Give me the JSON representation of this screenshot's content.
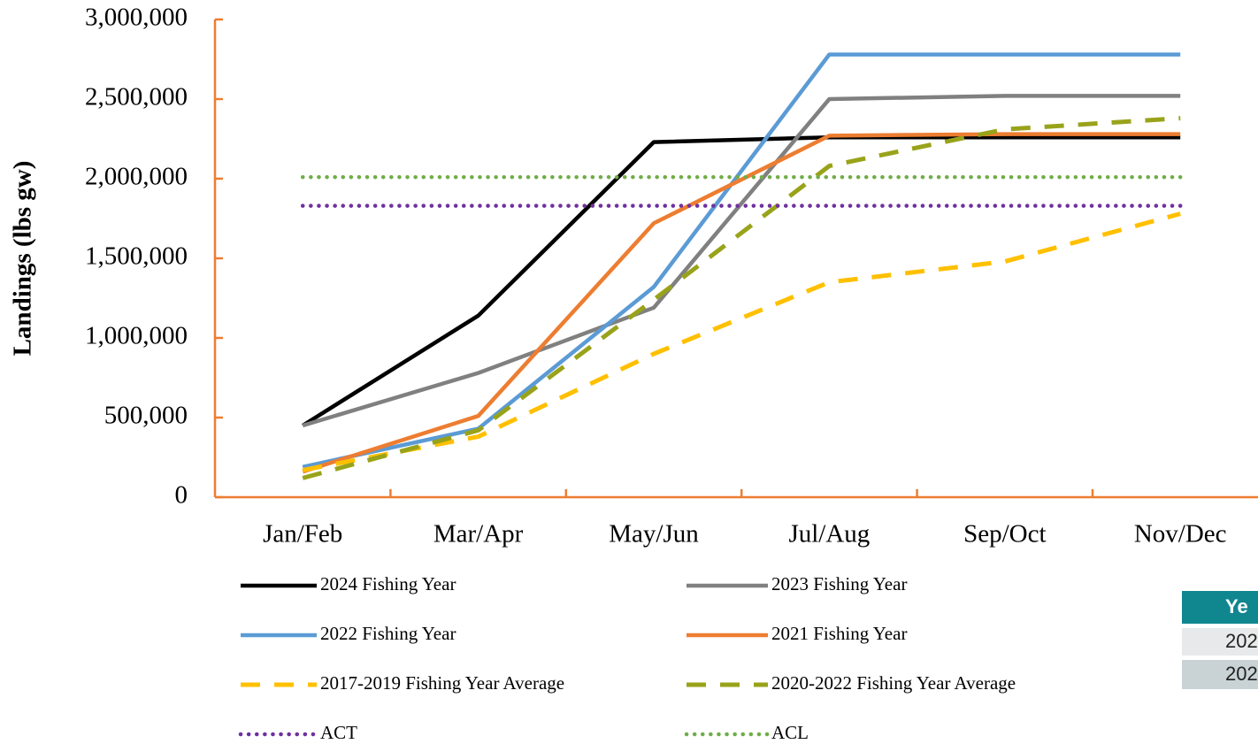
{
  "chart_data": {
    "type": "line",
    "y_label": "Landings (lbs gw)",
    "categories": [
      "Jan/Feb",
      "Mar/Apr",
      "May/Jun",
      "Jul/Aug",
      "Sep/Oct",
      "Nov/Dec"
    ],
    "ylim": [
      0,
      3000000
    ],
    "yticks": [
      0,
      {
        "value": 500000,
        "label": "500,000"
      },
      {
        "value": 1000000,
        "label": "1,000,000"
      },
      {
        "value": 1500000,
        "label": "1,500,000"
      },
      {
        "value": 2000000,
        "label": "2,000,000"
      },
      {
        "value": 2500000,
        "label": "2,500,000"
      },
      {
        "value": 3000000,
        "label": "3,000,000"
      }
    ],
    "axis_color": "#ed7d31",
    "series": [
      {
        "name": "2024 Fishing Year",
        "color": "#000000",
        "style": "solid",
        "values": [
          450000,
          1140000,
          2230000,
          2260000,
          2260000,
          2260000
        ]
      },
      {
        "name": "2023 Fishing Year",
        "color": "#808080",
        "style": "solid",
        "values": [
          450000,
          780000,
          1190000,
          2500000,
          2520000,
          2520000
        ]
      },
      {
        "name": "2022 Fishing Year",
        "color": "#5b9bd5",
        "style": "solid",
        "values": [
          190000,
          430000,
          1320000,
          2780000,
          2780000,
          2780000
        ]
      },
      {
        "name": "2021 Fishing Year",
        "color": "#ed7d31",
        "style": "solid",
        "values": [
          160000,
          510000,
          1720000,
          2270000,
          2280000,
          2280000
        ]
      },
      {
        "name": "2017-2019 Fishing Year Average",
        "color": "#ffc000",
        "style": "dashed",
        "values": [
          170000,
          380000,
          900000,
          1350000,
          1480000,
          1780000
        ]
      },
      {
        "name": "2020-2022 Fishing Year Average",
        "color": "#99a31a",
        "style": "dashed",
        "values": [
          120000,
          420000,
          1240000,
          2080000,
          2310000,
          2380000
        ]
      },
      {
        "name": "ACT",
        "color": "#7030a0",
        "style": "dotted",
        "values": [
          1830000,
          1830000,
          1830000,
          1830000,
          1830000,
          1830000
        ]
      },
      {
        "name": "ACL",
        "color": "#70ad47",
        "style": "dotted",
        "values": [
          2010000,
          2010000,
          2010000,
          2010000,
          2010000,
          2010000
        ]
      }
    ]
  },
  "table": {
    "header": "Ye",
    "rows": [
      "202",
      "202"
    ]
  }
}
